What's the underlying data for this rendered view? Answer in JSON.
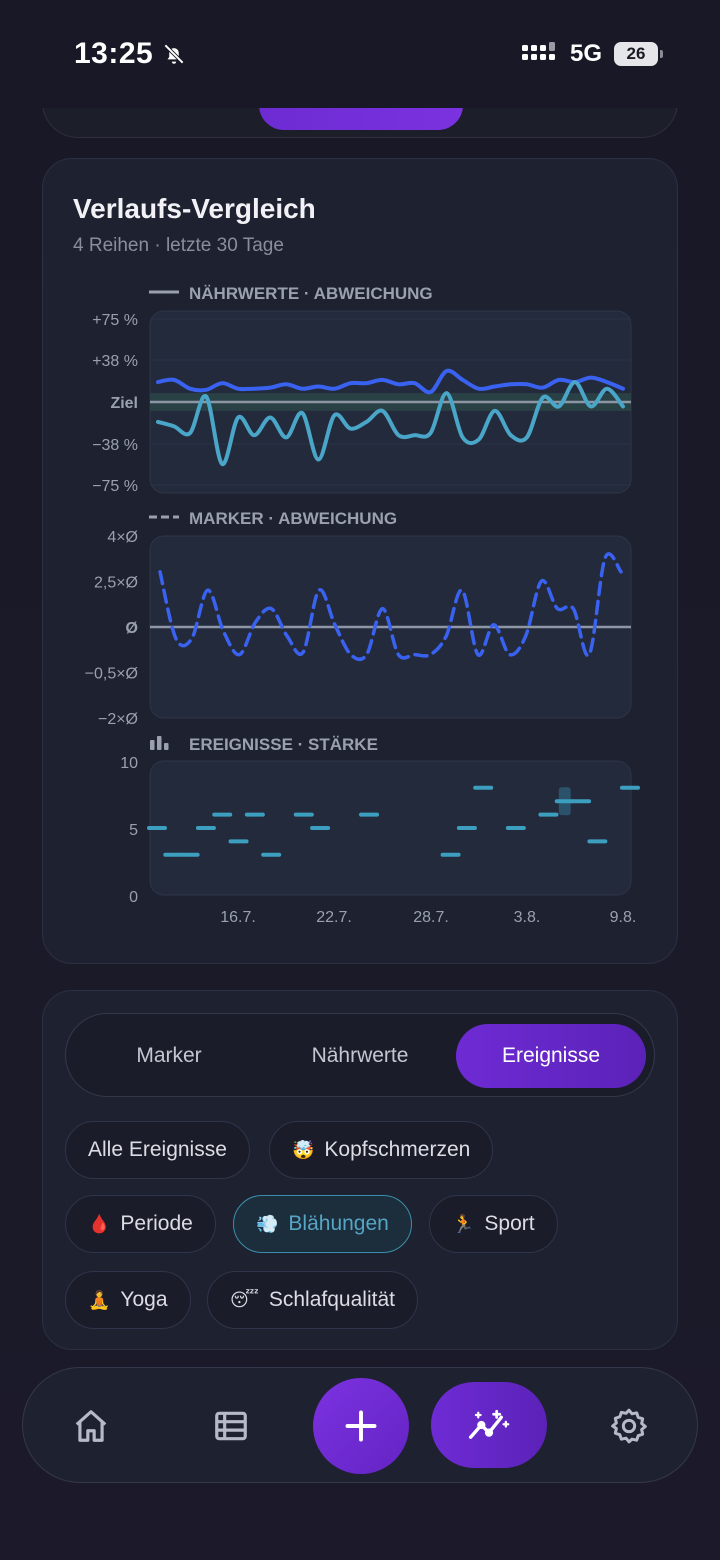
{
  "status_bar": {
    "time": "13:25",
    "network": "5G",
    "battery": "26"
  },
  "chart_card": {
    "title": "Verlaufs-Vergleich",
    "subtitle": "4 Reihen · letzte 30 Tage"
  },
  "colors": {
    "accent_purple": "#6e2bd4",
    "line_bright_blue": "#3a62f0",
    "line_teal": "#4aa6c8",
    "event_teal": "#3d9fbf",
    "card_bg": "#1e2230",
    "plot_bg": "#232a3c"
  },
  "chart_data": [
    {
      "type": "line",
      "title": "NÄHRWERTE · ABWEICHUNG",
      "legend_style": "solid",
      "y_ticks": [
        "+75 %",
        "+38 %",
        "Ziel",
        "−38 %",
        "−75 %"
      ],
      "ylim": [
        -75,
        75
      ],
      "reference_label": "Ziel",
      "x": [
        1,
        2,
        3,
        4,
        5,
        6,
        7,
        8,
        9,
        10,
        11,
        12,
        13,
        14,
        15,
        16,
        17,
        18,
        19,
        20,
        21,
        22,
        23,
        24,
        25,
        26,
        27,
        28,
        29,
        30
      ],
      "series": [
        {
          "values": [
            18,
            20,
            12,
            11,
            17,
            12,
            12,
            13,
            16,
            12,
            14,
            12,
            17,
            17,
            20,
            16,
            17,
            9,
            28,
            20,
            12,
            14,
            16,
            16,
            13,
            20,
            18,
            22,
            18,
            12
          ]
        },
        {
          "values": [
            -18,
            -22,
            -28,
            5,
            -56,
            -14,
            -30,
            -14,
            -32,
            -10,
            -52,
            -12,
            -24,
            -18,
            -8,
            -30,
            -30,
            -28,
            8,
            -32,
            -34,
            -8,
            -30,
            -32,
            4,
            -4,
            18,
            -4,
            12,
            -4
          ]
        }
      ]
    },
    {
      "type": "line",
      "title": "MARKER · ABWEICHUNG",
      "legend_style": "dashed",
      "y_ticks": [
        "4×Ø",
        "2,5×Ø",
        "Ø",
        "−0,5×Ø",
        "−2×Ø"
      ],
      "reference_label": "Ø",
      "x": [
        1,
        2,
        3,
        4,
        5,
        6,
        7,
        8,
        9,
        10,
        11,
        12,
        13,
        14,
        15,
        16,
        17,
        18,
        19,
        20,
        21,
        22,
        23,
        24,
        25,
        26,
        27,
        28,
        29,
        30
      ],
      "series": [
        {
          "values": [
            2.4,
            -0.5,
            -0.5,
            1.6,
            -0.2,
            -1.2,
            0.2,
            0.8,
            -0.4,
            -1.1,
            1.6,
            0.1,
            -1.2,
            -1.2,
            0.8,
            -1.2,
            -1.2,
            -1.2,
            -0.4,
            1.6,
            -1.2,
            0.1,
            -1.2,
            -0.4,
            2.0,
            0.8,
            0.8,
            -1.2,
            3.0,
            2.4
          ]
        }
      ]
    },
    {
      "type": "scatter",
      "title": "EREIGNISSE · STÄRKE",
      "legend_style": "bars",
      "y_ticks": [
        "10",
        "5",
        "0"
      ],
      "ylim": [
        0,
        10
      ],
      "x_ticks": [
        "16.7.",
        "22.7.",
        "28.7.",
        "3.8.",
        "9.8."
      ],
      "points": [
        {
          "x": 10,
          "y": 5
        },
        {
          "x": 11,
          "y": 3
        },
        {
          "x": 12,
          "y": 3
        },
        {
          "x": 13,
          "y": 5
        },
        {
          "x": 14,
          "y": 6
        },
        {
          "x": 15,
          "y": 4
        },
        {
          "x": 16,
          "y": 6
        },
        {
          "x": 17,
          "y": 3
        },
        {
          "x": 19,
          "y": 6
        },
        {
          "x": 20,
          "y": 5
        },
        {
          "x": 23,
          "y": 6
        },
        {
          "x": 28,
          "y": 3
        },
        {
          "x": 29,
          "y": 5
        },
        {
          "x": 30,
          "y": 8
        },
        {
          "x": 32,
          "y": 5
        },
        {
          "x": 34,
          "y": 6
        },
        {
          "x": 35,
          "y": 7
        },
        {
          "x": 36,
          "y": 7
        },
        {
          "x": 37,
          "y": 4
        },
        {
          "x": 39,
          "y": 8
        }
      ],
      "highlight_x": 35
    }
  ],
  "filters": {
    "tabs": [
      {
        "label": "Marker",
        "active": false
      },
      {
        "label": "Nährwerte",
        "active": false
      },
      {
        "label": "Ereignisse",
        "active": true
      }
    ],
    "chips": [
      {
        "label": "Alle Ereignisse",
        "emoji": "",
        "selected": false
      },
      {
        "label": "Kopfschmerzen",
        "emoji": "🤯",
        "selected": false
      },
      {
        "label": "Periode",
        "emoji": "🩸",
        "selected": false
      },
      {
        "label": "Blähungen",
        "emoji": "💨",
        "selected": true
      },
      {
        "label": "Sport",
        "emoji": "🏃",
        "selected": false
      },
      {
        "label": "Yoga",
        "emoji": "🧘",
        "selected": false
      },
      {
        "label": "Schlafqualität",
        "emoji": "😴",
        "selected": false
      }
    ]
  },
  "bottom_nav": {
    "items": [
      {
        "icon": "home-icon"
      },
      {
        "icon": "list-icon"
      },
      {
        "icon": "plus-icon"
      },
      {
        "icon": "insights-icon"
      },
      {
        "icon": "gear-icon"
      }
    ]
  }
}
